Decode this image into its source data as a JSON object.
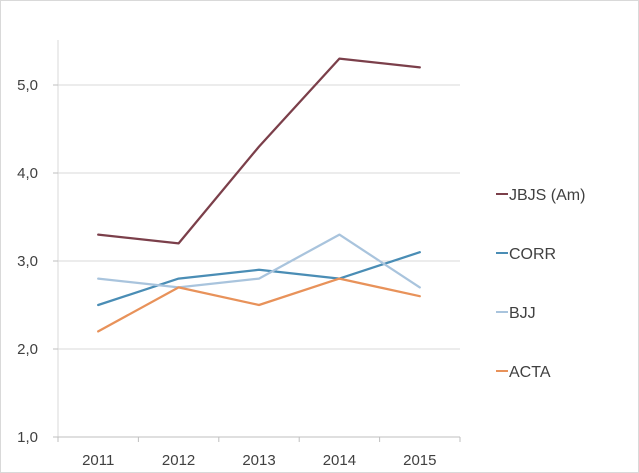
{
  "chart_data": {
    "type": "line",
    "title": "",
    "xlabel": "",
    "ylabel": "",
    "categories": [
      "2011",
      "2012",
      "2013",
      "2014",
      "2015"
    ],
    "ylim": [
      1.0,
      5.0
    ],
    "yticks": [
      "1,0",
      "2,0",
      "3,0",
      "4,0",
      "5,0"
    ],
    "grid": true,
    "legend_position": "right",
    "series": [
      {
        "name": "JBJS (Am)",
        "color": "#7b3f4a",
        "values": [
          3.3,
          3.2,
          4.3,
          5.3,
          5.2
        ]
      },
      {
        "name": "CORR",
        "color": "#4a8db5",
        "values": [
          2.5,
          2.8,
          2.9,
          2.8,
          3.1
        ]
      },
      {
        "name": "BJJ",
        "color": "#a9c4dd",
        "values": [
          2.8,
          2.7,
          2.8,
          3.3,
          2.7
        ]
      },
      {
        "name": "ACTA",
        "color": "#e8925a",
        "values": [
          2.2,
          2.7,
          2.5,
          2.8,
          2.6
        ]
      }
    ]
  }
}
